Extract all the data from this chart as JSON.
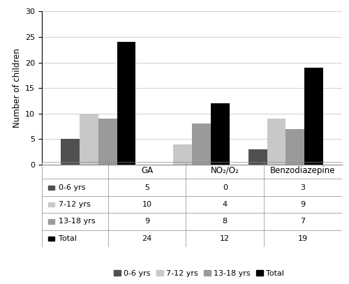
{
  "categories": [
    "GA",
    "NO₂/O₂",
    "Benzodiazepine"
  ],
  "series_names": [
    "0-6 yrs",
    "7-12 yrs",
    "13-18 yrs",
    "Total"
  ],
  "series_values": {
    "0-6 yrs": [
      5,
      0,
      3
    ],
    "7-12 yrs": [
      10,
      4,
      9
    ],
    "13-18 yrs": [
      9,
      8,
      7
    ],
    "Total": [
      24,
      12,
      19
    ]
  },
  "colors": {
    "0-6 yrs": "#505050",
    "7-12 yrs": "#c8c8c8",
    "13-18 yrs": "#9a9a9a",
    "Total": "#000000"
  },
  "ylabel": "Number of children",
  "ylim": [
    0,
    30
  ],
  "yticks": [
    0,
    5,
    10,
    15,
    20,
    25,
    30
  ],
  "table_data": [
    [
      5,
      0,
      3
    ],
    [
      10,
      4,
      9
    ],
    [
      9,
      8,
      7
    ],
    [
      24,
      12,
      19
    ]
  ],
  "legend_labels": [
    "0-6 yrs",
    "7-12 yrs",
    "13-18 yrs",
    "Total"
  ]
}
